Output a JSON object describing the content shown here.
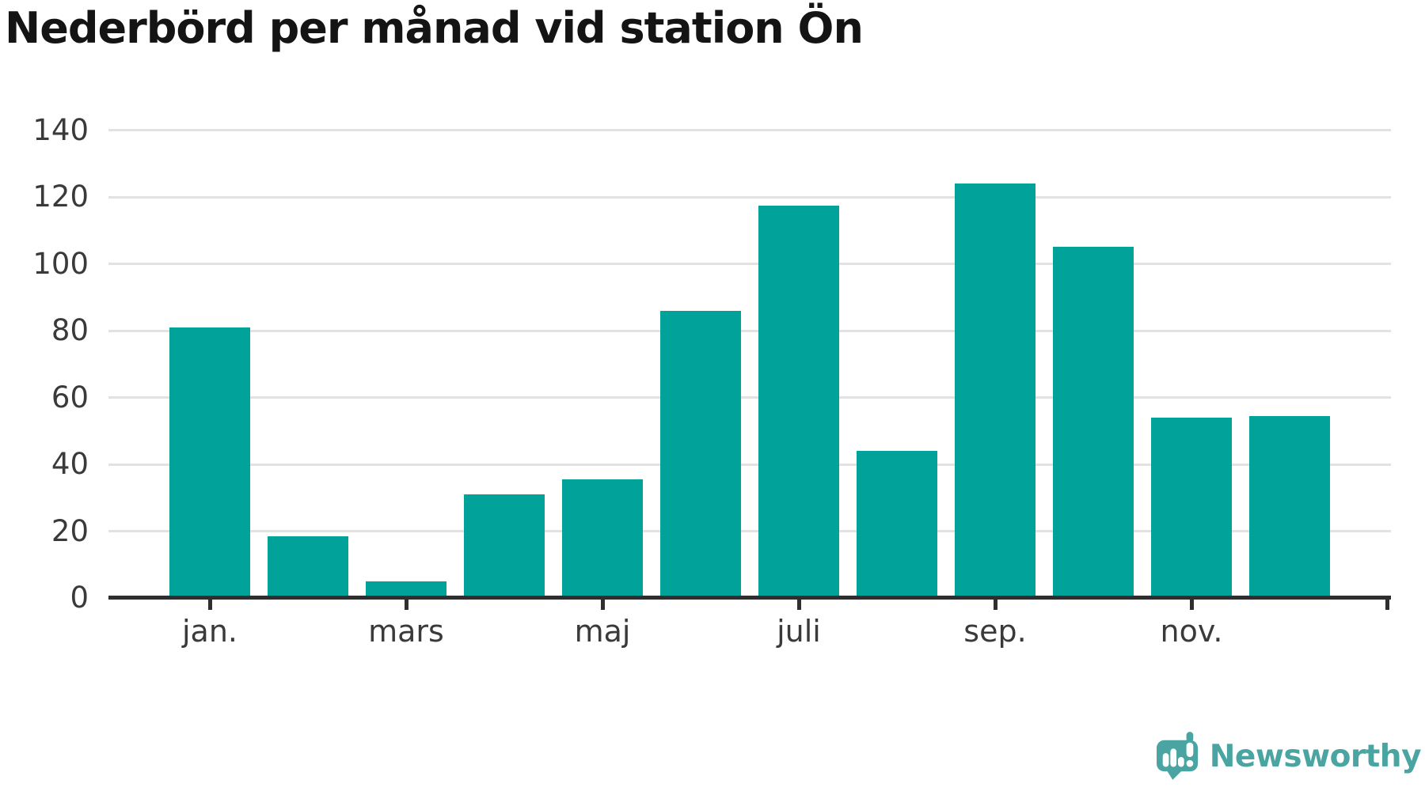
{
  "chart_data": {
    "type": "bar",
    "title": "Nederbörd per månad vid station Ön",
    "xlabel": "",
    "ylabel": "",
    "values": [
      81,
      18.5,
      5,
      31,
      35.5,
      86,
      117.5,
      44,
      124,
      105,
      54,
      54.5
    ],
    "x_ticks": [
      {
        "label": "jan.",
        "month_index": 0
      },
      {
        "label": "mars",
        "month_index": 2
      },
      {
        "label": "maj",
        "month_index": 4
      },
      {
        "label": "juli",
        "month_index": 6
      },
      {
        "label": "sep.",
        "month_index": 8
      },
      {
        "label": "nov.",
        "month_index": 10
      },
      {
        "label": "",
        "month_index": 12
      }
    ],
    "y_ticks": [
      0,
      20,
      40,
      60,
      80,
      100,
      120,
      140
    ],
    "ylim": [
      0,
      140
    ],
    "grid": "horizontal",
    "legend": "none",
    "bar_color": "#00a29a"
  },
  "colors": {
    "grid": "#e2e2e2",
    "axis": "#2e2e2e",
    "axis_label": "#3a3a3a",
    "title": "#141414",
    "logo_teal": "#4aa4a1"
  },
  "logo": {
    "text": "Newsworthy"
  }
}
